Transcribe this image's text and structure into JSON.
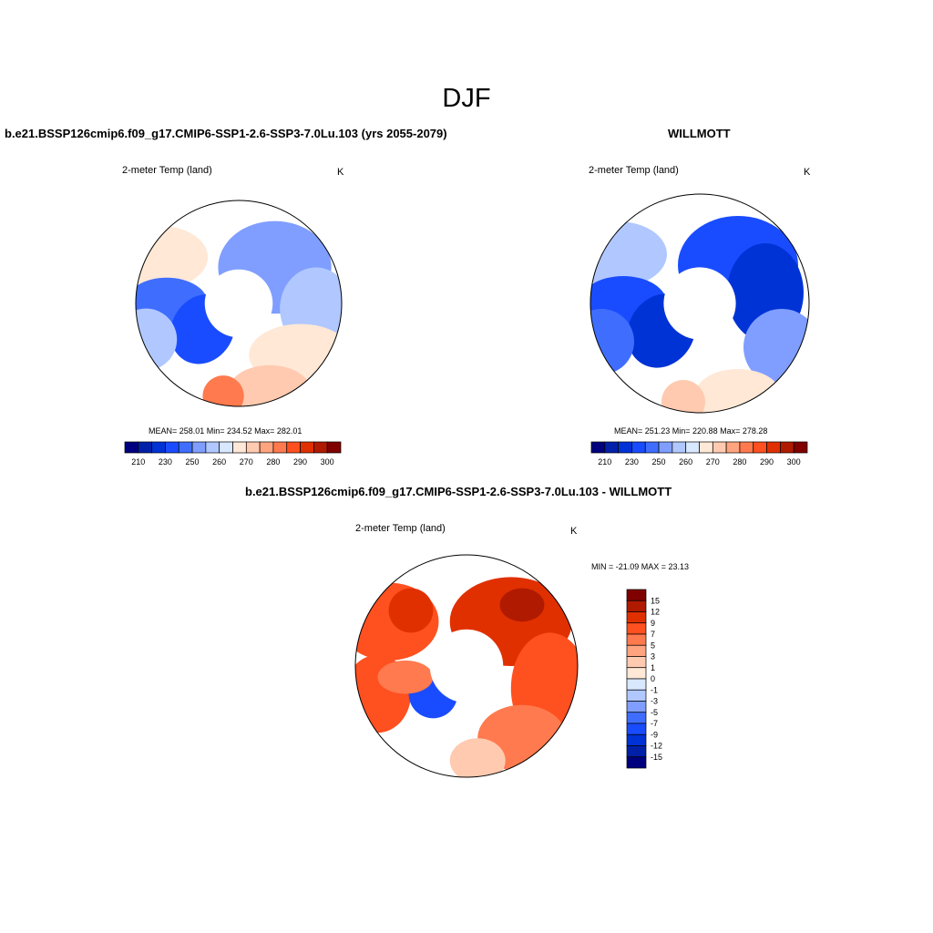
{
  "figure": {
    "title": "DJF",
    "panels": [
      {
        "title": "b.e21.BSSP126cmip6.f09_g17.CMIP6-SSP1-2.6-SSP3-7.0Lu.103 (yrs 2055-2079)",
        "left_label": "2-meter Temp (land)",
        "right_label": "K",
        "stats": "MEAN= 258.01  Min= 234.52  Max= 282.01"
      },
      {
        "title": "WILLMOTT",
        "left_label": "2-meter Temp (land)",
        "right_label": "K",
        "stats": "MEAN= 251.23  Min= 220.88  Max= 278.28"
      },
      {
        "title": "b.e21.BSSP126cmip6.f09_g17.CMIP6-SSP1-2.6-SSP3-7.0Lu.103 - WILLMOTT",
        "left_label": "2-meter Temp (land)",
        "right_label": "K",
        "stats": "MIN = -21.09 MAX =  23.13"
      }
    ],
    "abs_colorbar": {
      "colors": [
        "#00007f",
        "#0020a8",
        "#0033d6",
        "#1a4cff",
        "#3f6eff",
        "#7f9eff",
        "#b0c8ff",
        "#d8e8ff",
        "#ffe8d6",
        "#ffcab0",
        "#ffa47e",
        "#ff7a4e",
        "#ff5020",
        "#e03000",
        "#b01a00",
        "#800000"
      ],
      "tick_labels": [
        "210",
        "230",
        "250",
        "260",
        "270",
        "280",
        "290",
        "300"
      ]
    },
    "diff_colorbar": {
      "colors": [
        "#800000",
        "#b01a00",
        "#e03000",
        "#ff5020",
        "#ff7a4e",
        "#ffa47e",
        "#ffcab0",
        "#ffe8d6",
        "#d8e8ff",
        "#b0c8ff",
        "#7f9eff",
        "#3f6eff",
        "#1a4cff",
        "#0033d6",
        "#0020a8",
        "#00007f"
      ],
      "tick_labels": [
        "15",
        "12",
        "9",
        "7",
        "5",
        "3",
        "1",
        "0",
        "-1",
        "-3",
        "-5",
        "-7",
        "-9",
        "-12",
        "-15"
      ]
    },
    "projection": "north polar stereographic"
  }
}
